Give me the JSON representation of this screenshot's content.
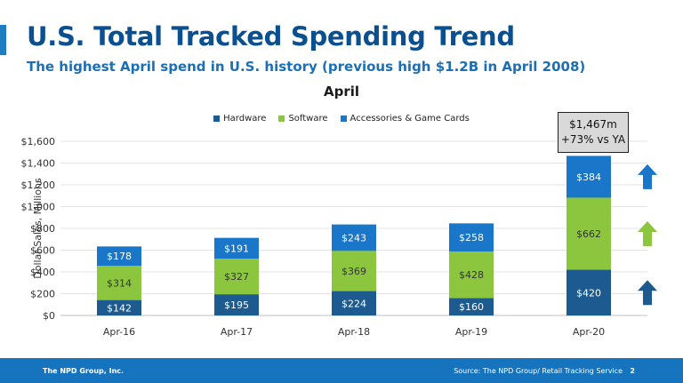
{
  "slide": {
    "title": "U.S. Total Tracked Spending Trend",
    "subtitle": "The highest April spend in U.S. history (previous high $1.2B in April 2008)"
  },
  "callout": {
    "line1": "$1,467m",
    "line2": "+73% vs YA"
  },
  "footer": {
    "company": "The NPD Group, Inc.",
    "source": "Source: The NPD Group/ Retail Tracking Service",
    "page": "2"
  },
  "colors": {
    "hardware": "#1c5a8f",
    "software": "#8cc63f",
    "accessories": "#1a76c8",
    "arrow_up_hardware": "#1c5a8f",
    "arrow_up_software": "#8cc63f",
    "arrow_up_accessories": "#1a76c8"
  },
  "trend_arrows": [
    "up-arrow-icon",
    "up-arrow-icon",
    "up-arrow-icon"
  ],
  "chart_data": {
    "type": "bar",
    "stacked": true,
    "title": "April",
    "ylabel": "Dollar Sales, Millions",
    "xlabel": "",
    "categories": [
      "Apr-16",
      "Apr-17",
      "Apr-18",
      "Apr-19",
      "Apr-20"
    ],
    "series": [
      {
        "name": "Hardware",
        "values": [
          142,
          195,
          224,
          160,
          420
        ],
        "labels": [
          "$142",
          "$195",
          "$224",
          "$160",
          "$420"
        ]
      },
      {
        "name": "Software",
        "values": [
          314,
          327,
          369,
          428,
          662
        ],
        "labels": [
          "$314",
          "$327",
          "$369",
          "$428",
          "$662"
        ]
      },
      {
        "name": "Accessories & Game Cards",
        "values": [
          178,
          191,
          243,
          258,
          384
        ],
        "labels": [
          "$178",
          "$191",
          "$243",
          "$258",
          "$384"
        ]
      }
    ],
    "yticks": [
      0,
      200,
      400,
      600,
      800,
      1000,
      1200,
      1400,
      1600
    ],
    "ytick_labels": [
      "$0",
      "$200",
      "$400",
      "$600",
      "$800",
      "$1,000",
      "$1,200",
      "$1,400",
      "$1,600"
    ],
    "ylim": [
      0,
      1600
    ],
    "grid": true,
    "legend_position": "top"
  }
}
